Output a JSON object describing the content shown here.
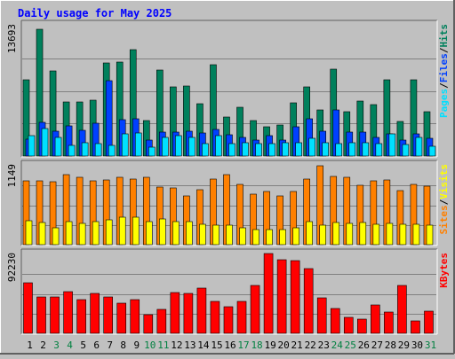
{
  "title": "Daily usage for May 2025",
  "colors": {
    "background": "#c0c0c0",
    "panel": "#c0c0c0",
    "title": "#0000ff",
    "hits": "#00805c",
    "files": "#0040ff",
    "pages": "#00e0ff",
    "sites": "#ff8000",
    "visits": "#ffff00",
    "kbytes": "#ff0000",
    "grid": "#808080",
    "weekend_day": "#008040",
    "weekday": "#000000"
  },
  "chart_data": [
    {
      "type": "bar",
      "name": "pages-files-hits",
      "ylabel_parts": [
        "Pages",
        "/",
        "Files",
        "/",
        "Hits"
      ],
      "ylabel_colors": [
        "#00e0ff",
        "#000000",
        "#0040ff",
        "#000000",
        "#00805c"
      ],
      "max_label": "13693",
      "ylim": [
        0,
        13693
      ],
      "categories": [
        "1",
        "2",
        "3",
        "4",
        "5",
        "6",
        "7",
        "8",
        "9",
        "10",
        "11",
        "12",
        "13",
        "14",
        "15",
        "16",
        "17",
        "18",
        "19",
        "20",
        "21",
        "22",
        "23",
        "24",
        "25",
        "26",
        "27",
        "28",
        "29",
        "30",
        "31"
      ],
      "series": [
        {
          "name": "Hits",
          "values": [
            8000,
            13300,
            8900,
            5700,
            5700,
            5900,
            9800,
            9900,
            11200,
            3700,
            9000,
            7300,
            7400,
            5500,
            9600,
            4100,
            5100,
            3700,
            3100,
            3300,
            5600,
            7300,
            4800,
            9100,
            4700,
            5800,
            5400,
            8000,
            3600,
            8000,
            4700
          ]
        },
        {
          "name": "Files",
          "values": [
            1800,
            3500,
            2600,
            3200,
            2700,
            3400,
            7900,
            3800,
            3900,
            1700,
            2500,
            2500,
            2600,
            2400,
            2800,
            2200,
            2000,
            1700,
            2100,
            1700,
            3100,
            3900,
            2600,
            4800,
            2500,
            2500,
            2000,
            2300,
            1700,
            2300,
            1900
          ]
        },
        {
          "name": "Pages",
          "values": [
            2100,
            2900,
            2000,
            1100,
            1400,
            1300,
            1100,
            2300,
            2400,
            900,
            2000,
            2100,
            2000,
            1300,
            2100,
            1300,
            1400,
            1300,
            1300,
            1400,
            1400,
            1900,
            1400,
            1300,
            1400,
            1400,
            1300,
            2300,
            1200,
            2000,
            1000
          ]
        }
      ]
    },
    {
      "type": "bar",
      "name": "sites-visits",
      "ylabel_parts": [
        "Sites",
        "/",
        "Visits"
      ],
      "ylabel_colors": [
        "#ff8000",
        "#000000",
        "#ffff00"
      ],
      "max_label": "1149",
      "ylim": [
        0,
        1149
      ],
      "categories": [
        "1",
        "2",
        "3",
        "4",
        "5",
        "6",
        "7",
        "8",
        "9",
        "10",
        "11",
        "12",
        "13",
        "14",
        "15",
        "16",
        "17",
        "18",
        "19",
        "20",
        "21",
        "22",
        "23",
        "24",
        "25",
        "26",
        "27",
        "28",
        "29",
        "30",
        "31"
      ],
      "series": [
        {
          "name": "Sites",
          "values": [
            935,
            935,
            915,
            1025,
            975,
            930,
            945,
            975,
            955,
            975,
            835,
            825,
            705,
            805,
            955,
            1020,
            875,
            740,
            780,
            710,
            775,
            950,
            1145,
            1000,
            975,
            860,
            930,
            945,
            790,
            875,
            855
          ]
        },
        {
          "name": "Visits",
          "values": [
            355,
            325,
            240,
            335,
            315,
            330,
            360,
            400,
            395,
            335,
            370,
            335,
            330,
            300,
            290,
            280,
            245,
            225,
            215,
            225,
            245,
            340,
            290,
            320,
            310,
            320,
            300,
            315,
            300,
            300,
            290
          ]
        }
      ]
    },
    {
      "type": "bar",
      "name": "kbytes",
      "ylabel_parts": [
        "KBytes"
      ],
      "ylabel_colors": [
        "#ff0000"
      ],
      "max_label": "92230",
      "ylim": [
        0,
        92230
      ],
      "categories": [
        "1",
        "2",
        "3",
        "4",
        "5",
        "6",
        "7",
        "8",
        "9",
        "10",
        "11",
        "12",
        "13",
        "14",
        "15",
        "16",
        "17",
        "18",
        "19",
        "20",
        "21",
        "22",
        "23",
        "24",
        "25",
        "26",
        "27",
        "28",
        "29",
        "30",
        "31"
      ],
      "series": [
        {
          "name": "KBytes",
          "values": [
            59000,
            42500,
            42500,
            48500,
            39500,
            46500,
            42000,
            35500,
            39000,
            22000,
            27500,
            48000,
            47000,
            52500,
            37500,
            31500,
            37000,
            56000,
            93000,
            86000,
            84500,
            75500,
            41500,
            28500,
            18500,
            16500,
            33000,
            24500,
            56000,
            14000,
            25500
          ]
        }
      ]
    }
  ],
  "x_axis": {
    "days": [
      "1",
      "2",
      "3",
      "4",
      "5",
      "6",
      "7",
      "8",
      "9",
      "10",
      "11",
      "12",
      "13",
      "14",
      "15",
      "16",
      "17",
      "18",
      "19",
      "20",
      "21",
      "22",
      "23",
      "24",
      "25",
      "26",
      "27",
      "28",
      "29",
      "30",
      "31"
    ],
    "weekend_days": [
      "3",
      "4",
      "10",
      "11",
      "17",
      "18",
      "24",
      "25",
      "31"
    ]
  }
}
